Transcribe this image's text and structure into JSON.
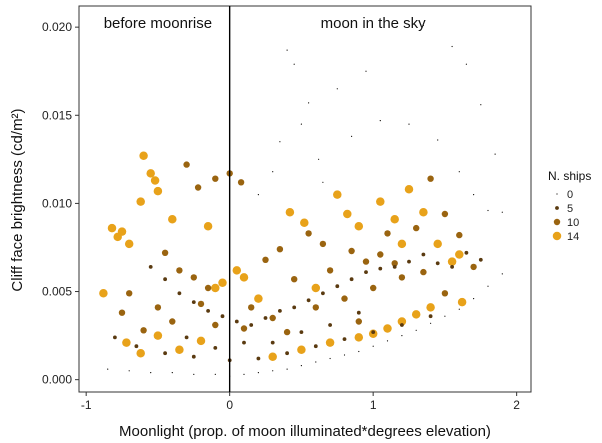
{
  "chart_data": {
    "type": "scatter",
    "xlabel": "Moonlight (prop. of moon illuminated*degrees elevation)",
    "ylabel": "Cliff face brightness",
    "ylabel_unit": "(cd/m²)",
    "xlim": [
      -1.05,
      2.1
    ],
    "ylim": [
      -0.0007,
      0.0212
    ],
    "x_ticks": [
      -1,
      0,
      1,
      2
    ],
    "x_tick_labels": [
      "-1",
      "0",
      "1",
      "2"
    ],
    "y_ticks": [
      0.0,
      0.005,
      0.01,
      0.015,
      0.02
    ],
    "y_tick_labels": [
      "0.000",
      "0.005",
      "0.010",
      "0.015",
      "0.020"
    ],
    "vline_x": 0,
    "regions": [
      {
        "label": "before moonrise",
        "x": -0.5
      },
      {
        "label": "moon in the sky",
        "x": 1.0
      }
    ],
    "grid": false,
    "legend": {
      "title": "N. ships",
      "placement": "right",
      "entries": [
        {
          "label": "0",
          "ships": 0
        },
        {
          "label": "5",
          "ships": 5
        },
        {
          "label": "10",
          "ships": 10
        },
        {
          "label": "14",
          "ships": 14
        }
      ]
    },
    "color_scale": [
      {
        "ships": 0,
        "color": "#0d0a06"
      },
      {
        "ships": 5,
        "color": "#5a3a10"
      },
      {
        "ships": 10,
        "color": "#9a6410"
      },
      {
        "ships": 14,
        "color": "#e8a21a"
      }
    ],
    "point_groups": [
      {
        "ships": 14,
        "points": [
          [
            -0.6,
            0.0127
          ],
          [
            -0.55,
            0.0117
          ],
          [
            -0.52,
            0.0113
          ],
          [
            -0.5,
            0.0107
          ],
          [
            -0.82,
            0.0086
          ],
          [
            -0.78,
            0.0081
          ],
          [
            -0.75,
            0.0084
          ],
          [
            -0.7,
            0.0077
          ],
          [
            -0.62,
            0.0101
          ],
          [
            -0.88,
            0.0049
          ],
          [
            -0.4,
            0.0091
          ],
          [
            -0.15,
            0.0087
          ],
          [
            -0.1,
            0.0052
          ],
          [
            -0.05,
            0.0055
          ],
          [
            0.05,
            0.0062
          ],
          [
            0.1,
            0.0058
          ],
          [
            0.42,
            0.0095
          ],
          [
            0.52,
            0.0089
          ],
          [
            0.75,
            0.0105
          ],
          [
            0.82,
            0.0094
          ],
          [
            0.9,
            0.0087
          ],
          [
            1.05,
            0.0101
          ],
          [
            1.15,
            0.0091
          ],
          [
            1.2,
            0.0077
          ],
          [
            1.25,
            0.0108
          ],
          [
            1.35,
            0.0095
          ],
          [
            1.45,
            0.0077
          ],
          [
            1.55,
            0.0067
          ],
          [
            1.62,
            0.0044
          ],
          [
            1.4,
            0.0041
          ],
          [
            1.3,
            0.0037
          ],
          [
            1.2,
            0.0033
          ],
          [
            1.1,
            0.0029
          ],
          [
            1.0,
            0.0026
          ],
          [
            0.9,
            0.0024
          ],
          [
            0.7,
            0.0021
          ],
          [
            0.5,
            0.0017
          ],
          [
            0.3,
            0.0013
          ],
          [
            -0.2,
            0.0022
          ],
          [
            -0.35,
            0.0017
          ],
          [
            -0.5,
            0.0025
          ],
          [
            -0.62,
            0.0015
          ],
          [
            -0.72,
            0.0021
          ],
          [
            0.2,
            0.0046
          ],
          [
            0.6,
            0.0052
          ],
          [
            1.6,
            0.0071
          ]
        ]
      },
      {
        "ships": 10,
        "points": [
          [
            -0.3,
            0.0122
          ],
          [
            -0.22,
            0.0109
          ],
          [
            -0.1,
            0.0114
          ],
          [
            0.0,
            0.0117
          ],
          [
            0.08,
            0.0112
          ],
          [
            -0.45,
            0.0072
          ],
          [
            -0.35,
            0.0062
          ],
          [
            -0.25,
            0.0058
          ],
          [
            -0.15,
            0.0052
          ],
          [
            -0.7,
            0.0049
          ],
          [
            -0.75,
            0.0038
          ],
          [
            0.25,
            0.0068
          ],
          [
            0.35,
            0.0074
          ],
          [
            0.55,
            0.0083
          ],
          [
            0.65,
            0.0077
          ],
          [
            0.85,
            0.0073
          ],
          [
            0.95,
            0.0067
          ],
          [
            1.1,
            0.0083
          ],
          [
            1.3,
            0.0086
          ],
          [
            1.4,
            0.0114
          ],
          [
            1.5,
            0.0094
          ],
          [
            1.6,
            0.0082
          ],
          [
            1.7,
            0.0064
          ],
          [
            0.3,
            0.0035
          ],
          [
            0.6,
            0.0041
          ],
          [
            0.8,
            0.0046
          ],
          [
            1.0,
            0.0052
          ],
          [
            1.2,
            0.0058
          ],
          [
            1.35,
            0.0061
          ],
          [
            1.5,
            0.0049
          ],
          [
            0.1,
            0.0029
          ],
          [
            -0.1,
            0.0031
          ],
          [
            -0.4,
            0.0033
          ],
          [
            -0.6,
            0.0028
          ],
          [
            0.45,
            0.0057
          ],
          [
            0.7,
            0.0062
          ],
          [
            1.05,
            0.0071
          ],
          [
            1.15,
            0.0066
          ],
          [
            0.15,
            0.0041
          ],
          [
            -0.2,
            0.0043
          ],
          [
            -0.5,
            0.0041
          ],
          [
            0.4,
            0.0027
          ],
          [
            0.9,
            0.0033
          ]
        ]
      },
      {
        "ships": 5,
        "points": [
          [
            -0.55,
            0.0064
          ],
          [
            -0.45,
            0.0057
          ],
          [
            -0.35,
            0.0049
          ],
          [
            -0.25,
            0.0044
          ],
          [
            -0.15,
            0.0039
          ],
          [
            -0.05,
            0.0036
          ],
          [
            0.05,
            0.0033
          ],
          [
            0.15,
            0.0031
          ],
          [
            0.25,
            0.0035
          ],
          [
            0.35,
            0.0039
          ],
          [
            0.45,
            0.0041
          ],
          [
            0.55,
            0.0045
          ],
          [
            0.65,
            0.0049
          ],
          [
            0.75,
            0.0053
          ],
          [
            0.85,
            0.0057
          ],
          [
            0.95,
            0.0061
          ],
          [
            1.05,
            0.0063
          ],
          [
            1.15,
            0.0064
          ],
          [
            1.25,
            0.0067
          ],
          [
            1.35,
            0.0071
          ],
          [
            1.45,
            0.0066
          ],
          [
            1.55,
            0.0064
          ],
          [
            1.65,
            0.0072
          ],
          [
            1.75,
            0.0068
          ],
          [
            -0.8,
            0.0024
          ],
          [
            -0.65,
            0.0019
          ],
          [
            -0.45,
            0.0015
          ],
          [
            -0.25,
            0.0013
          ],
          [
            0.0,
            0.0011
          ],
          [
            0.2,
            0.0012
          ],
          [
            0.4,
            0.0015
          ],
          [
            0.6,
            0.0019
          ],
          [
            0.8,
            0.0023
          ],
          [
            1.0,
            0.0027
          ],
          [
            1.2,
            0.0031
          ],
          [
            1.4,
            0.0036
          ],
          [
            0.3,
            0.0021
          ],
          [
            0.5,
            0.0027
          ],
          [
            0.7,
            0.0031
          ],
          [
            0.9,
            0.0038
          ],
          [
            -0.3,
            0.0024
          ],
          [
            -0.1,
            0.0018
          ],
          [
            0.1,
            0.0021
          ]
        ]
      },
      {
        "ships": 0,
        "points": [
          [
            -0.85,
            0.0006
          ],
          [
            -0.7,
            0.0005
          ],
          [
            -0.55,
            0.0004
          ],
          [
            -0.4,
            0.0004
          ],
          [
            -0.25,
            0.0003
          ],
          [
            -0.1,
            0.0003
          ],
          [
            0.0,
            0.0002
          ],
          [
            0.1,
            0.0003
          ],
          [
            0.2,
            0.0004
          ],
          [
            0.3,
            0.0005
          ],
          [
            0.4,
            0.0006
          ],
          [
            0.5,
            0.0008
          ],
          [
            0.6,
            0.001
          ],
          [
            0.7,
            0.0012
          ],
          [
            0.8,
            0.0014
          ],
          [
            0.9,
            0.0016
          ],
          [
            1.0,
            0.0019
          ],
          [
            1.1,
            0.0022
          ],
          [
            1.2,
            0.0025
          ],
          [
            1.3,
            0.0028
          ],
          [
            1.4,
            0.0032
          ],
          [
            1.5,
            0.0036
          ],
          [
            1.6,
            0.004
          ],
          [
            1.7,
            0.0046
          ],
          [
            1.8,
            0.0053
          ],
          [
            1.9,
            0.006
          ],
          [
            0.4,
            0.0187
          ],
          [
            0.45,
            0.0179
          ],
          [
            0.55,
            0.0157
          ],
          [
            0.75,
            0.0165
          ],
          [
            0.95,
            0.0175
          ],
          [
            1.35,
            0.0201
          ],
          [
            1.55,
            0.0189
          ],
          [
            1.65,
            0.0179
          ],
          [
            1.75,
            0.0156
          ],
          [
            1.85,
            0.0128
          ],
          [
            1.9,
            0.0095
          ],
          [
            0.35,
            0.0135
          ],
          [
            0.5,
            0.0145
          ],
          [
            0.62,
            0.0125
          ],
          [
            0.85,
            0.0138
          ],
          [
            1.05,
            0.0147
          ],
          [
            1.25,
            0.0145
          ],
          [
            1.45,
            0.0136
          ],
          [
            1.6,
            0.0118
          ],
          [
            1.7,
            0.0105
          ],
          [
            1.8,
            0.0096
          ],
          [
            0.2,
            0.0105
          ],
          [
            0.3,
            0.0118
          ],
          [
            0.65,
            0.0112
          ]
        ]
      }
    ]
  }
}
